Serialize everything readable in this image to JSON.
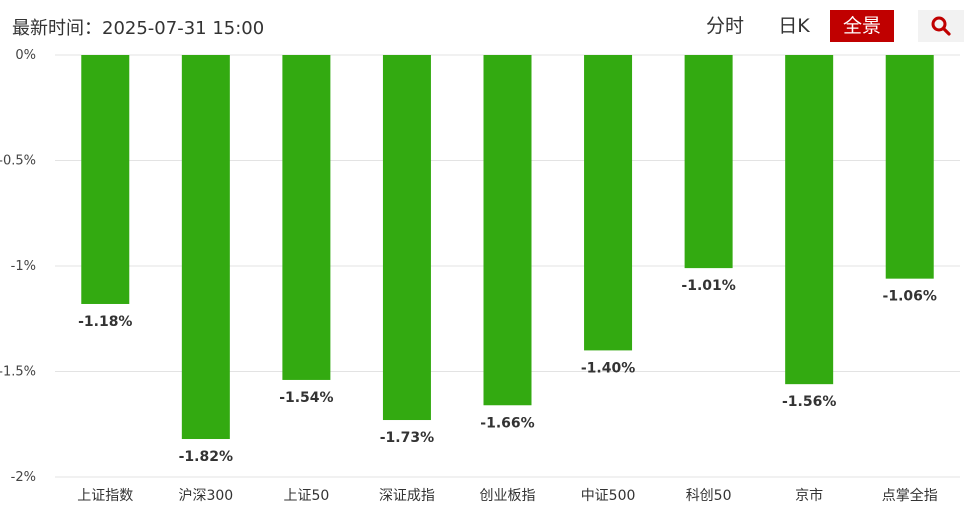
{
  "header": {
    "update_time": "最新时间：2025-07-31 15:00",
    "tabs": [
      {
        "label": "分时",
        "active": false
      },
      {
        "label": "日K",
        "active": false
      },
      {
        "label": "全景",
        "active": true
      }
    ],
    "search_icon": "search-icon",
    "active_tab_color": "#c00000"
  },
  "chart_data": {
    "type": "bar",
    "categories": [
      "上证指数",
      "沪深300",
      "上证50",
      "深证成指",
      "创业板指",
      "中证500",
      "科创50",
      "京市",
      "点掌全指"
    ],
    "values": [
      -1.18,
      -1.82,
      -1.54,
      -1.73,
      -1.66,
      -1.4,
      -1.01,
      -1.56,
      -1.06
    ],
    "value_labels": [
      "-1.18%",
      "-1.82%",
      "-1.54%",
      "-1.73%",
      "-1.66%",
      "-1.40%",
      "-1.01%",
      "-1.56%",
      "-1.06%"
    ],
    "y_ticks": [
      0,
      -0.5,
      -1,
      -1.5,
      -2
    ],
    "y_tick_labels": [
      "0%",
      "-0.5%",
      "-1%",
      "-1.5%",
      "-2%"
    ],
    "ylim": [
      -2,
      0
    ],
    "bar_color": "#33aa11",
    "grid": true,
    "title": "",
    "xlabel": "",
    "ylabel": ""
  }
}
